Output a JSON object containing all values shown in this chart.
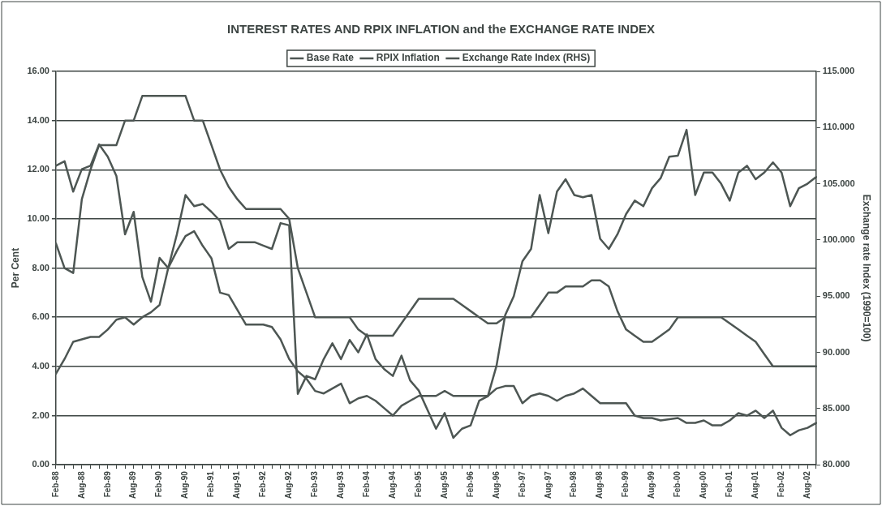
{
  "chart_data": {
    "type": "line",
    "title": "INTEREST RATES AND RPIX INFLATION and the EXCHANGE RATE INDEX",
    "ylabel": "Per Cent",
    "y2label": "Exchange rate Index (1990=100)",
    "categories": [
      "Feb-88",
      null,
      null,
      "Aug-88",
      null,
      null,
      "Feb-89",
      null,
      null,
      "Aug-89",
      null,
      null,
      "Feb-90",
      null,
      null,
      "Aug-90",
      null,
      null,
      "Feb-91",
      null,
      null,
      "Aug-91",
      null,
      null,
      "Feb-92",
      null,
      null,
      "Aug-92",
      null,
      null,
      "Feb-93",
      null,
      null,
      "Aug-93",
      null,
      null,
      "Feb-94",
      null,
      null,
      "Aug-94",
      null,
      null,
      "Feb-95",
      null,
      null,
      "Aug-95",
      null,
      null,
      "Feb-96",
      null,
      null,
      "Aug-96",
      null,
      null,
      "Feb-97",
      null,
      null,
      "Aug-97",
      null,
      null,
      "Feb-98",
      null,
      null,
      "Aug-98",
      null,
      null,
      "Feb-99",
      null,
      null,
      "Aug-99",
      null,
      null,
      "Feb-00",
      null,
      null,
      "Aug-00",
      null,
      null,
      "Feb-01",
      null,
      null,
      "Aug-01",
      null,
      null,
      "Feb-02",
      null,
      null,
      "Aug-02",
      null
    ],
    "series": [
      {
        "name": "Base Rate",
        "color": "#4d5653",
        "values": [
          9.0,
          8.0,
          7.8,
          10.8,
          12.0,
          13.0,
          13.0,
          13.0,
          14.0,
          14.0,
          15.0,
          15.0,
          15.0,
          15.0,
          15.0,
          15.0,
          14.0,
          14.0,
          13.0,
          12.0,
          11.3,
          10.8,
          10.4,
          10.4,
          10.4,
          10.4,
          10.4,
          10.0,
          8.0,
          7.0,
          6.0,
          6.0,
          6.0,
          6.0,
          6.0,
          5.5,
          5.25,
          5.25,
          5.25,
          5.25,
          5.75,
          6.25,
          6.75,
          6.75,
          6.75,
          6.75,
          6.75,
          6.5,
          6.25,
          6.0,
          5.75,
          5.75,
          6.0,
          6.0,
          6.0,
          6.0,
          6.5,
          7.0,
          7.0,
          7.25,
          7.25,
          7.25,
          7.5,
          7.5,
          7.25,
          6.25,
          5.5,
          5.25,
          5.0,
          5.0,
          5.25,
          5.5,
          6.0,
          6.0,
          6.0,
          6.0,
          6.0,
          6.0,
          5.75,
          5.5,
          5.25,
          5.0,
          4.5,
          4.0,
          4.0,
          4.0,
          4.0,
          4.0,
          4.0
        ]
      },
      {
        "name": "RPIX Inflation",
        "color": "#4d5653",
        "values": [
          3.7,
          4.3,
          5.0,
          5.1,
          5.2,
          5.2,
          5.5,
          5.9,
          6.0,
          5.7,
          6.0,
          6.2,
          6.5,
          8.0,
          8.7,
          9.3,
          9.5,
          8.9,
          8.4,
          7.0,
          6.9,
          6.3,
          5.7,
          5.7,
          5.7,
          5.6,
          5.1,
          4.3,
          3.8,
          3.5,
          3.0,
          2.9,
          3.1,
          3.3,
          2.5,
          2.7,
          2.8,
          2.6,
          2.3,
          2.0,
          2.4,
          2.6,
          2.8,
          2.8,
          2.8,
          3.0,
          2.8,
          2.8,
          2.8,
          2.8,
          2.8,
          3.1,
          3.2,
          3.2,
          2.5,
          2.8,
          2.9,
          2.8,
          2.6,
          2.8,
          2.9,
          3.1,
          2.8,
          2.5,
          2.5,
          2.5,
          2.5,
          2.0,
          1.9,
          1.9,
          1.8,
          1.85,
          1.9,
          1.7,
          1.7,
          1.8,
          1.6,
          1.6,
          1.8,
          2.1,
          2.0,
          2.2,
          1.9,
          2.2,
          1.5,
          1.2,
          1.4,
          1.5,
          1.7
        ]
      },
      {
        "name": "Exchange Rate Index (RHS)",
        "color": "#4d5653",
        "axis": "y2",
        "values": [
          106.6,
          107.0,
          104.3,
          106.3,
          106.6,
          108.5,
          107.4,
          105.7,
          100.5,
          102.5,
          96.7,
          94.5,
          98.4,
          97.5,
          100.5,
          104.0,
          103.0,
          103.2,
          102.5,
          101.7,
          99.2,
          99.8,
          99.8,
          99.8,
          99.5,
          99.2,
          101.5,
          101.3,
          86.3,
          87.9,
          87.6,
          89.4,
          90.8,
          89.4,
          91.1,
          90.0,
          91.6,
          89.4,
          88.5,
          87.9,
          89.7,
          87.5,
          86.6,
          84.9,
          83.2,
          84.6,
          82.4,
          83.2,
          83.5,
          85.7,
          86.1,
          88.8,
          93.3,
          95.0,
          98.1,
          99.2,
          104.0,
          100.6,
          104.3,
          105.4,
          104.0,
          103.8,
          104.0,
          100.1,
          99.2,
          100.5,
          102.3,
          103.5,
          103.0,
          104.6,
          105.5,
          107.4,
          107.5,
          109.8,
          104.0,
          106.0,
          106.0,
          105.0,
          103.5,
          106.0,
          106.6,
          105.4,
          106.0,
          106.9,
          106.0,
          103.0,
          104.6,
          105.0,
          105.6
        ]
      }
    ],
    "ylim": [
      0,
      16
    ],
    "yticks": [
      {
        "value": 0,
        "label": "0.00"
      },
      {
        "value": 2,
        "label": "2.00"
      },
      {
        "value": 4,
        "label": "4.00"
      },
      {
        "value": 6,
        "label": "6.00"
      },
      {
        "value": 8,
        "label": "8.00"
      },
      {
        "value": 10,
        "label": "10.00"
      },
      {
        "value": 12,
        "label": "12.00"
      },
      {
        "value": 14,
        "label": "14.00"
      },
      {
        "value": 16,
        "label": "16.00"
      }
    ],
    "y2lim": [
      80,
      115
    ],
    "y2ticks": [
      {
        "value": 80,
        "label": "80.000"
      },
      {
        "value": 85,
        "label": "85.000"
      },
      {
        "value": 90,
        "label": "90.000"
      },
      {
        "value": 95,
        "label": "95.000"
      },
      {
        "value": 100,
        "label": "100.000"
      },
      {
        "value": 105,
        "label": "105.000"
      },
      {
        "value": 110,
        "label": "110.000"
      },
      {
        "value": 115,
        "label": "115.000"
      }
    ],
    "grid": "y",
    "legend": "top",
    "marker": "none",
    "line_style": "solid"
  }
}
